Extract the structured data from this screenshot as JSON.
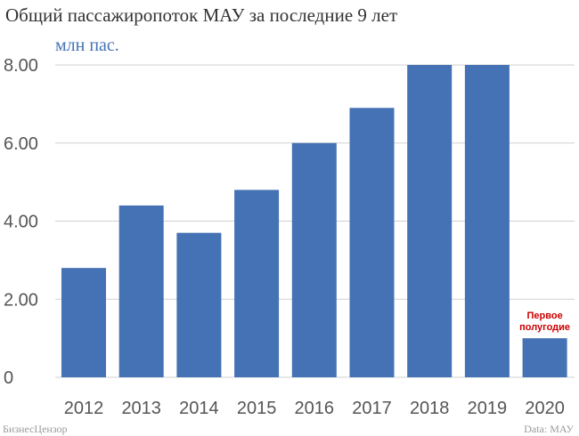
{
  "title": "Общий пассажиропоток МАУ за последние 9 лет",
  "unit_label": "млн пас.",
  "source_left": "БизнесЦензор",
  "source_right": "Data: МАУ",
  "colors": {
    "bar": "#4472b4",
    "grid": "#d0d0d0",
    "annotation": "#cc0000"
  },
  "chart_data": {
    "type": "bar",
    "categories": [
      "2012",
      "2013",
      "2014",
      "2015",
      "2016",
      "2017",
      "2018",
      "2019",
      "2020"
    ],
    "values": [
      2.8,
      4.4,
      3.7,
      4.8,
      6.0,
      6.9,
      8.0,
      8.0,
      1.0
    ],
    "yticks": [
      "0",
      "2.00",
      "4.00",
      "6.00",
      "8.00"
    ],
    "ylim": [
      0,
      8
    ],
    "grid": true,
    "annotation": {
      "category": "2020",
      "lines": [
        "Первое",
        "полугодие"
      ]
    }
  }
}
